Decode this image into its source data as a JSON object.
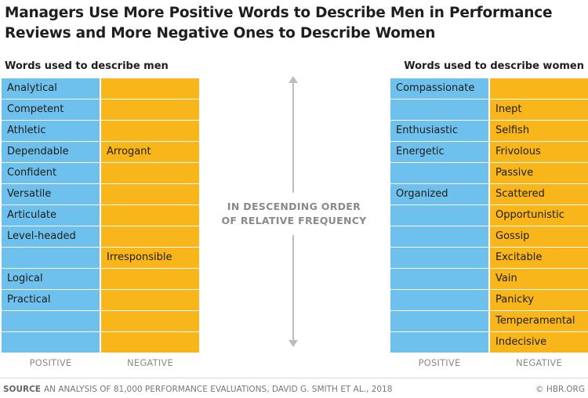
{
  "title": "Managers Use More Positive Words to Describe Men in Performance Reviews and More Negative Ones to Describe Women",
  "center_note": {
    "line1": "IN DESCENDING ORDER",
    "line2": "OF RELATIVE FREQUENCY"
  },
  "footer": {
    "source_label": "SOURCE",
    "source_text": "AN ANALYSIS OF 81,000 PERFORMANCE EVALUATIONS, DAVID G. SMITH ET AL., 2018",
    "credit": "© HBR.ORG"
  },
  "colors": {
    "positive": "#6ec1ec",
    "negative": "#f9b61a"
  },
  "chart_data": [
    {
      "type": "table",
      "title": "Words used to describe men",
      "columns": [
        "POSITIVE",
        "NEGATIVE"
      ],
      "rows": [
        [
          "Analytical",
          ""
        ],
        [
          "Competent",
          ""
        ],
        [
          "Athletic",
          ""
        ],
        [
          "Dependable",
          "Arrogant"
        ],
        [
          "Confident",
          ""
        ],
        [
          "Versatile",
          ""
        ],
        [
          "Articulate",
          ""
        ],
        [
          "Level-headed",
          ""
        ],
        [
          "",
          "Irresponsible"
        ],
        [
          "Logical",
          ""
        ],
        [
          "Practical",
          ""
        ],
        [
          "",
          ""
        ],
        [
          "",
          ""
        ]
      ]
    },
    {
      "type": "table",
      "title": "Words used to describe women",
      "columns": [
        "POSITIVE",
        "NEGATIVE"
      ],
      "rows": [
        [
          "Compassionate",
          ""
        ],
        [
          "",
          "Inept"
        ],
        [
          "Enthusiastic",
          "Selfish"
        ],
        [
          "Energetic",
          "Frivolous"
        ],
        [
          "",
          "Passive"
        ],
        [
          "Organized",
          "Scattered"
        ],
        [
          "",
          "Opportunistic"
        ],
        [
          "",
          "Gossip"
        ],
        [
          "",
          "Excitable"
        ],
        [
          "",
          "Vain"
        ],
        [
          "",
          "Panicky"
        ],
        [
          "",
          "Temperamental"
        ],
        [
          "",
          "Indecisive"
        ]
      ]
    }
  ]
}
